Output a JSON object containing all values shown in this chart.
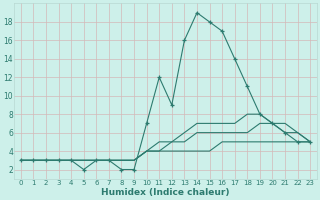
{
  "xlabel": "Humidex (Indice chaleur)",
  "x": [
    0,
    1,
    2,
    3,
    4,
    5,
    6,
    7,
    8,
    9,
    10,
    11,
    12,
    13,
    14,
    15,
    16,
    17,
    18,
    19,
    20,
    21,
    22,
    23
  ],
  "line1": [
    3,
    3,
    3,
    3,
    3,
    2,
    3,
    3,
    2,
    2,
    7,
    12,
    9,
    16,
    19,
    18,
    17,
    14,
    11,
    8,
    7,
    6,
    5,
    5
  ],
  "line2": [
    3,
    3,
    3,
    3,
    3,
    3,
    3,
    3,
    3,
    3,
    4,
    5,
    5,
    6,
    7,
    7,
    7,
    7,
    8,
    8,
    7,
    7,
    6,
    5
  ],
  "line3": [
    3,
    3,
    3,
    3,
    3,
    3,
    3,
    3,
    3,
    3,
    4,
    4,
    5,
    5,
    6,
    6,
    6,
    6,
    6,
    7,
    7,
    6,
    6,
    5
  ],
  "line4": [
    3,
    3,
    3,
    3,
    3,
    3,
    3,
    3,
    3,
    3,
    4,
    4,
    4,
    4,
    4,
    4,
    5,
    5,
    5,
    5,
    5,
    5,
    5,
    5
  ],
  "color": "#2d7b6f",
  "bg_color": "#cdf0ea",
  "grid_color": "#b8d8d2",
  "ylim": [
    1,
    20
  ],
  "yticks": [
    2,
    4,
    6,
    8,
    10,
    12,
    14,
    16,
    18
  ],
  "xticks": [
    0,
    1,
    2,
    3,
    4,
    5,
    6,
    7,
    8,
    9,
    10,
    11,
    12,
    13,
    14,
    15,
    16,
    17,
    18,
    19,
    20,
    21,
    22,
    23
  ]
}
